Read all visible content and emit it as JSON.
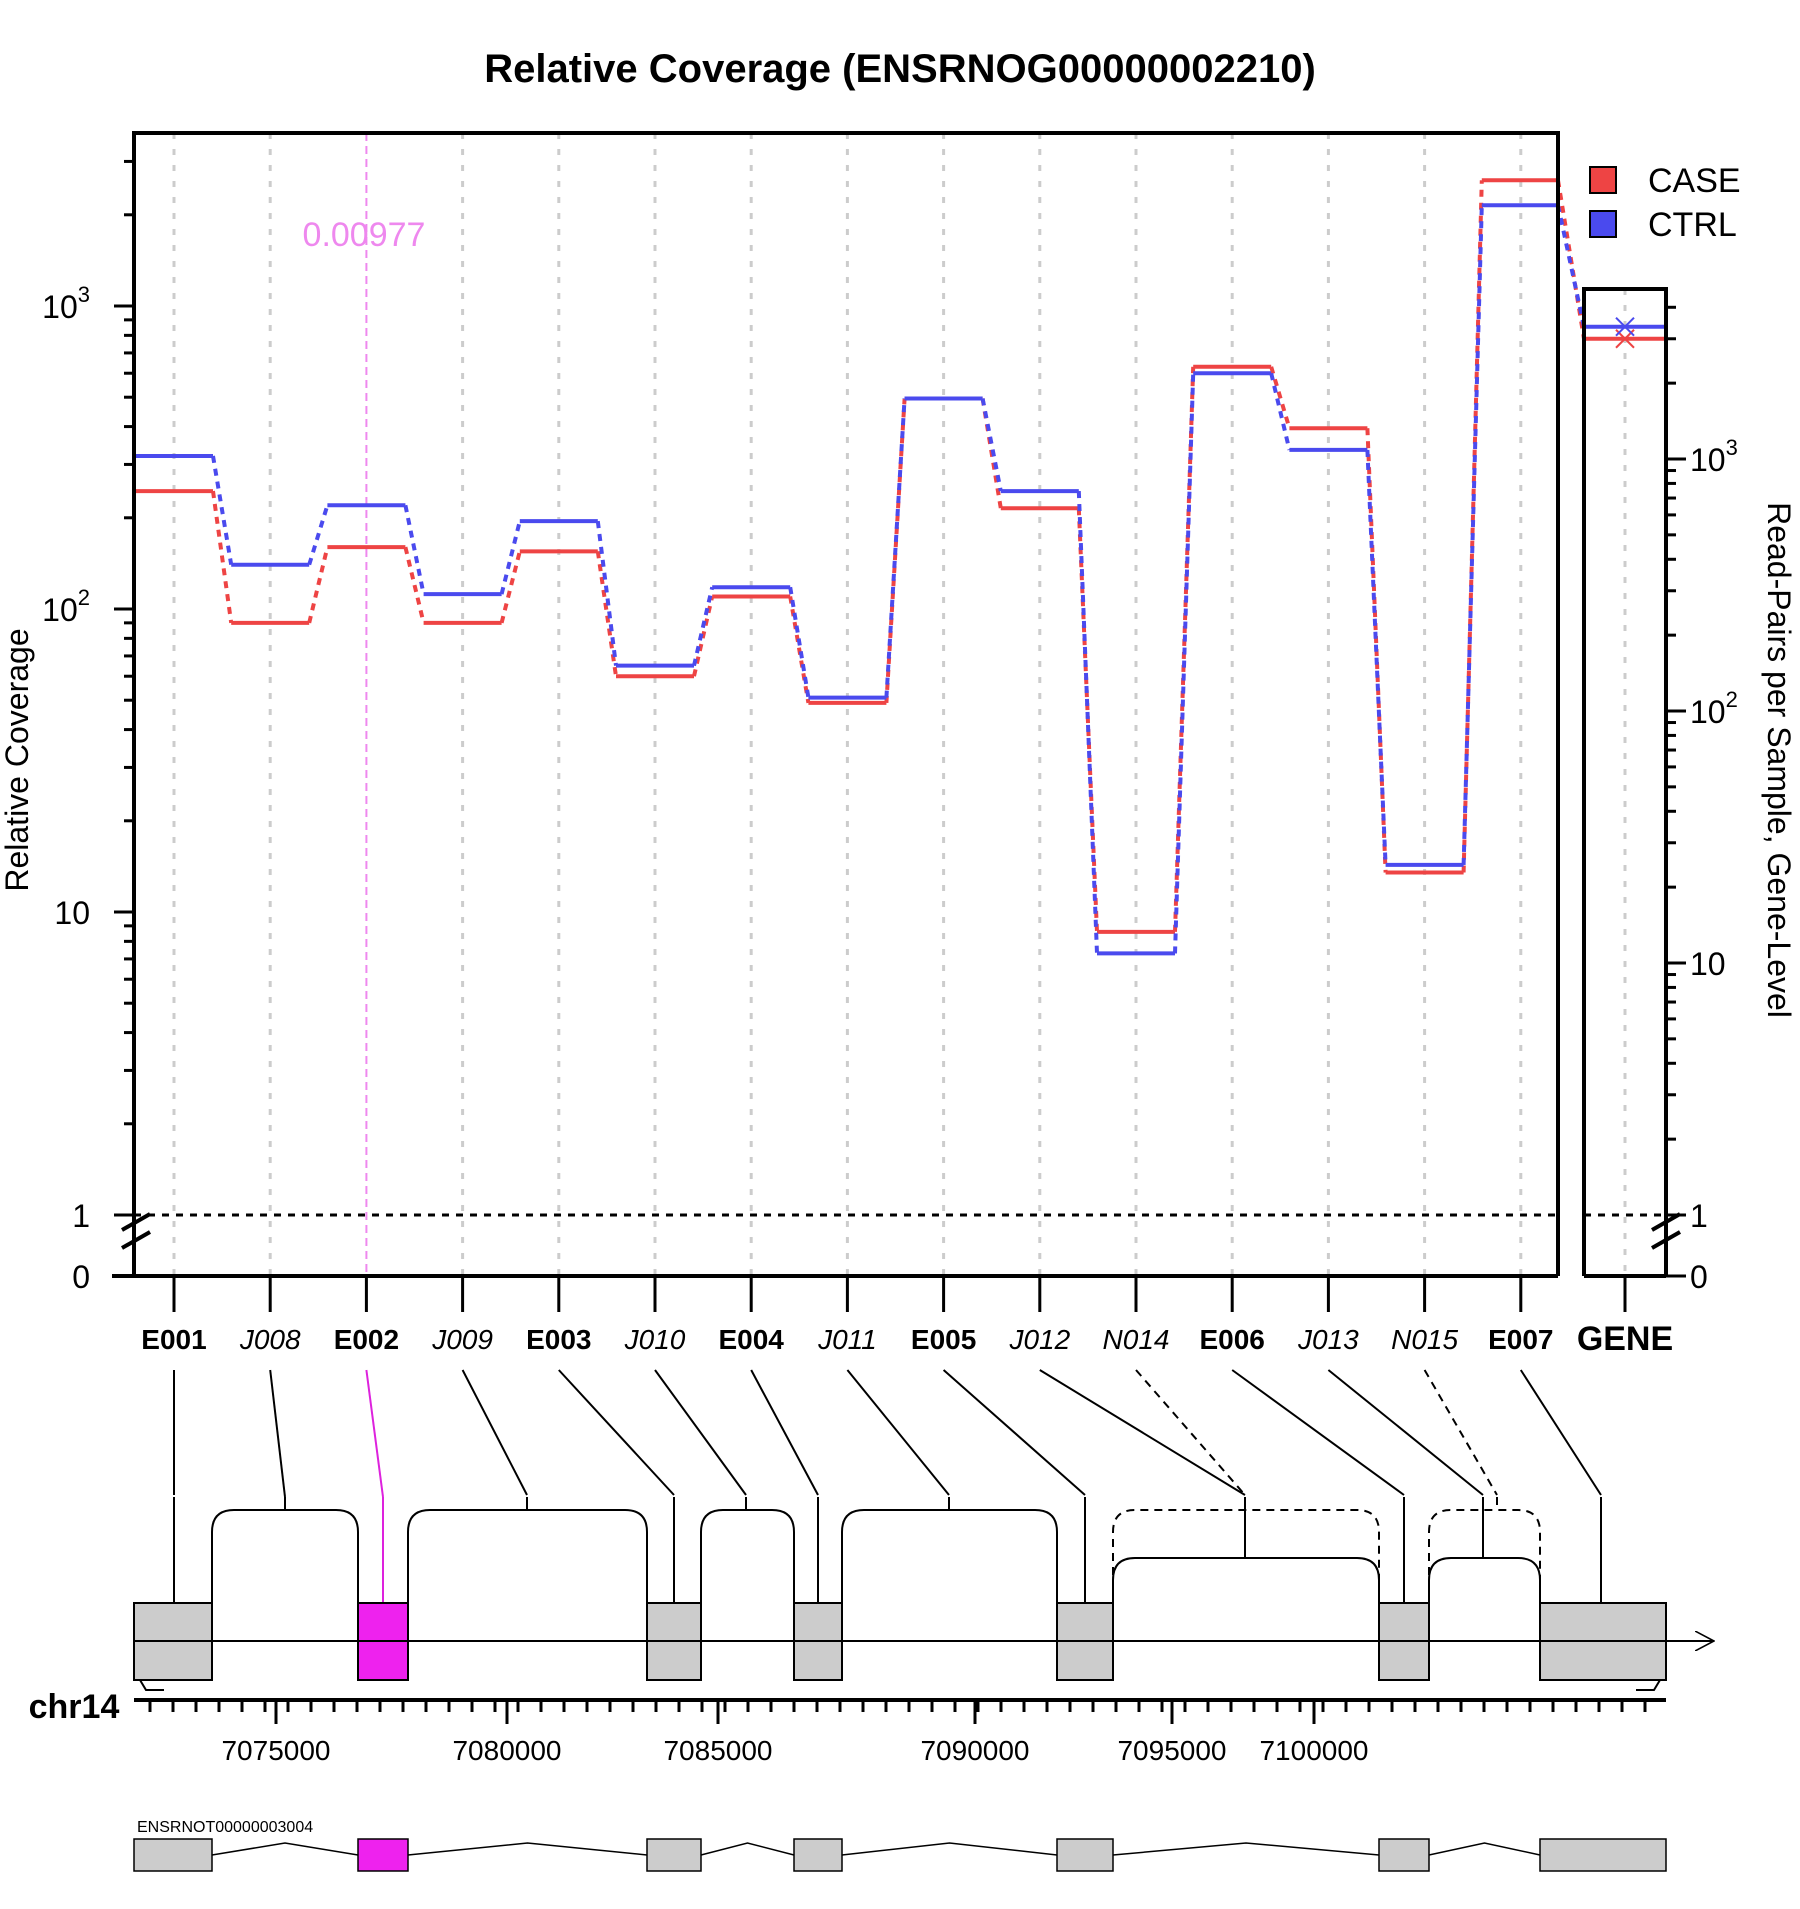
{
  "chart_data": {
    "type": "line",
    "title": "Relative Coverage (ENSRNOG00000002210)",
    "ylabel": "Relative Coverage",
    "y2label": "Read-Pairs per Sample, Gene-Level",
    "y_scale": "log",
    "ylim": [
      0,
      4000
    ],
    "y_ticks": [
      {
        "value": 0,
        "label": "0",
        "exp": ""
      },
      {
        "value": 1,
        "label": "1",
        "exp": ""
      },
      {
        "value": 10,
        "label": "10",
        "exp": ""
      },
      {
        "value": 100,
        "label": "10",
        "exp": "2"
      },
      {
        "value": 1000,
        "label": "10",
        "exp": "3"
      }
    ],
    "y2_ticks": [
      {
        "value": 0,
        "label": "0",
        "exp": ""
      },
      {
        "value": 1,
        "label": "1",
        "exp": ""
      },
      {
        "value": 10,
        "label": "10",
        "exp": ""
      },
      {
        "value": 100,
        "label": "10",
        "exp": "2"
      },
      {
        "value": 1000,
        "label": "10",
        "exp": "3"
      }
    ],
    "grid": "vertical dotted",
    "legend_position": "top-right",
    "categories": [
      "E001",
      "J008",
      "E002",
      "J009",
      "E003",
      "J010",
      "E004",
      "J011",
      "E005",
      "J012",
      "N014",
      "E006",
      "J013",
      "N015",
      "E007"
    ],
    "category_style": [
      "exon",
      "junction",
      "exon",
      "junction",
      "exon",
      "junction",
      "exon",
      "junction",
      "exon",
      "junction",
      "junction",
      "exon",
      "junction",
      "junction",
      "exon"
    ],
    "highlight_feature": "E002",
    "highlight_pvalue": "0.00977",
    "series": [
      {
        "name": "CASE",
        "color": "#ee4444",
        "values": [
          245,
          90,
          160,
          90,
          155,
          60,
          110,
          49,
          495,
          215,
          8.6,
          630,
          395,
          13.5,
          2600
        ]
      },
      {
        "name": "CTRL",
        "color": "#4a4aee",
        "values": [
          320,
          140,
          220,
          112,
          195,
          65,
          118,
          51,
          495,
          245,
          7.3,
          600,
          335,
          14.3,
          2150
        ]
      }
    ],
    "reference_line": 1,
    "gene_panel": {
      "label": "GENE",
      "values": [
        {
          "name": "CASE",
          "value": 3000
        },
        {
          "name": "CTRL",
          "value": 3350
        }
      ]
    }
  },
  "gene_model": {
    "chromosome": "chr14",
    "axis_ticks": [
      "7075000",
      "7080000",
      "7085000",
      "7090000",
      "7095000",
      "7100000"
    ],
    "transcript": "ENSRNOT00000003004"
  }
}
